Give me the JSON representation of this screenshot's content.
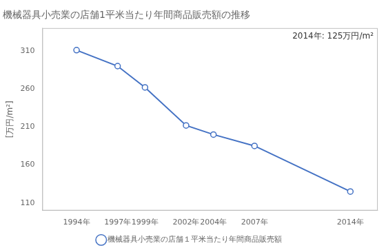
{
  "chart_data": {
    "type": "line",
    "title": "機械器具小売業の店舗1平米当たり年間商品販売額の推移",
    "ylabel": "[万円/m²]",
    "annotation": "2014年: 125万円/m²",
    "x": [
      1994,
      1997,
      1999,
      2002,
      2004,
      2007,
      2014
    ],
    "series": [
      {
        "name": "機械器具小売業の店舗１平米当たり年間商品販売額",
        "color": "#4472C4",
        "marker": "circle",
        "values": [
          311,
          290,
          262,
          212,
          200,
          185,
          125
        ]
      }
    ],
    "xlim": [
      1991.5,
      2016
    ],
    "xticks": [
      {
        "value": 1994,
        "label": "1994年"
      },
      {
        "value": 1997,
        "label": "1997年"
      },
      {
        "value": 1999,
        "label": "1999年"
      },
      {
        "value": 2002,
        "label": "2002年"
      },
      {
        "value": 2004,
        "label": "2004年"
      },
      {
        "value": 2007,
        "label": "2007年"
      },
      {
        "value": 2014,
        "label": "2014年"
      }
    ],
    "ylim": [
      100,
      340
    ],
    "yticks": [
      110,
      160,
      210,
      260,
      310
    ],
    "grid": false,
    "legend": "bottom"
  }
}
